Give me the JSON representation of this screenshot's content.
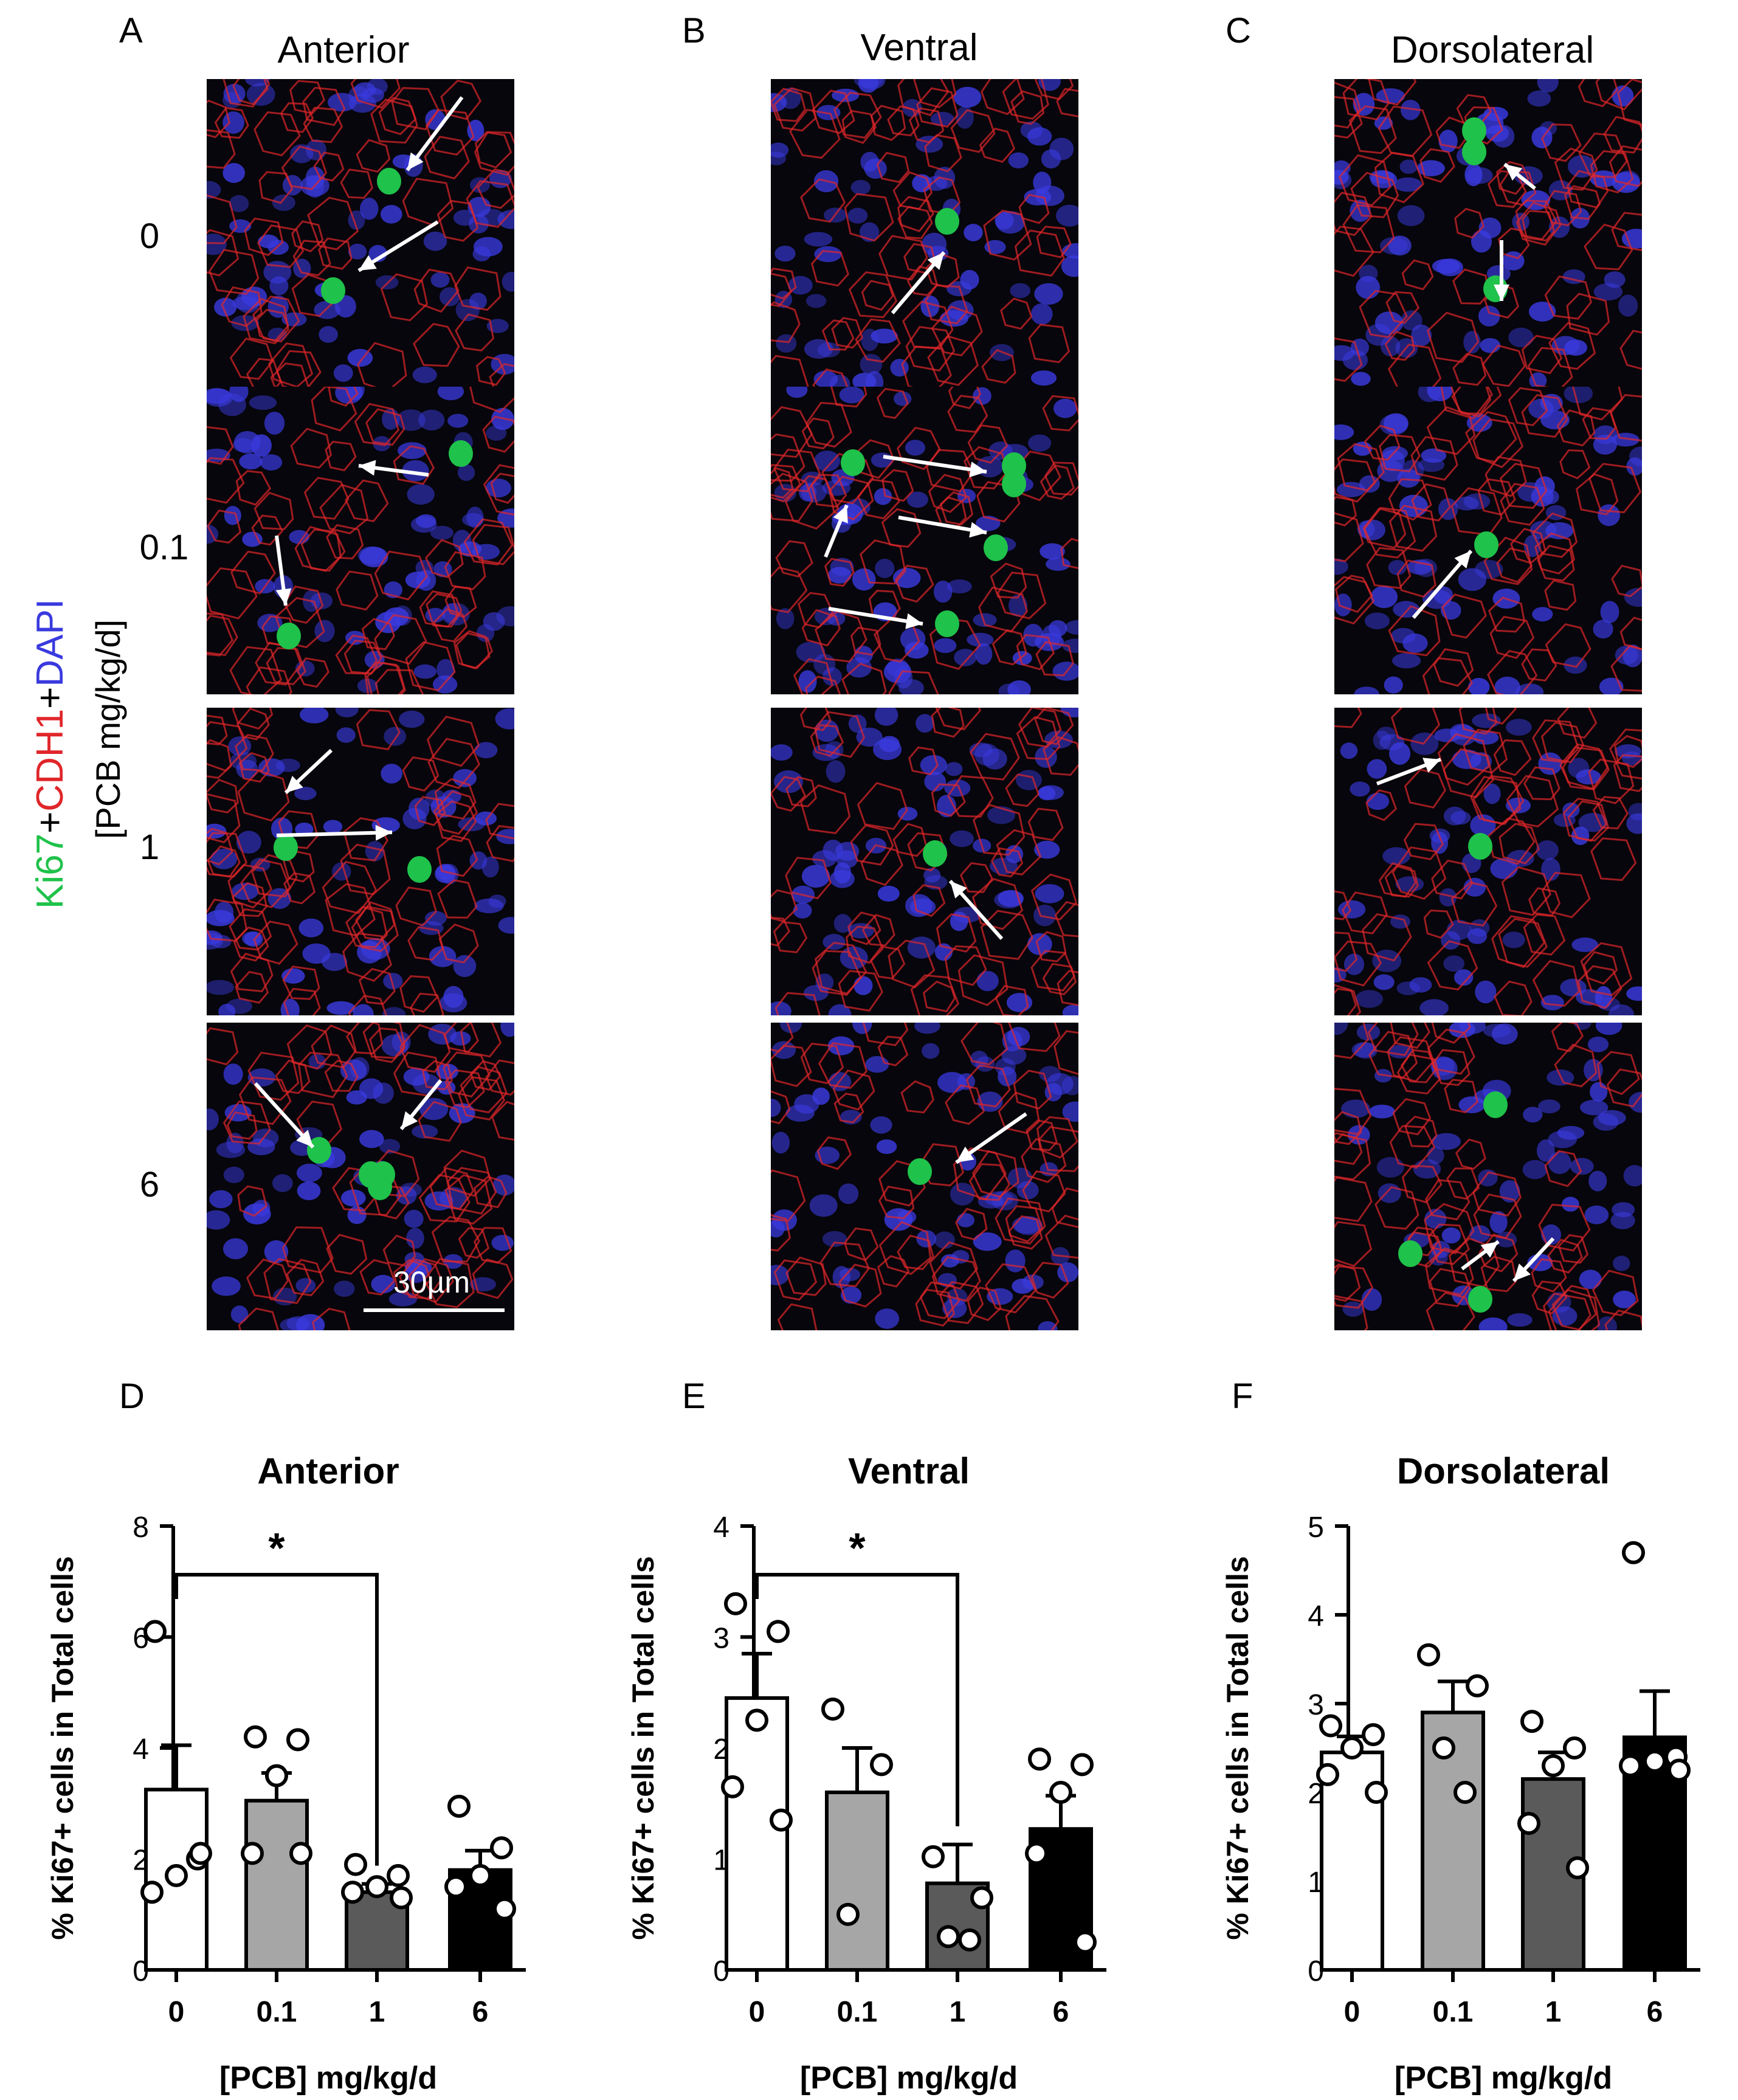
{
  "figure": {
    "panels": {
      "A": "A",
      "B": "B",
      "C": "C",
      "D": "D",
      "E": "E",
      "F": "F"
    },
    "columns": [
      {
        "letter": "A",
        "title": "Anterior"
      },
      {
        "letter": "B",
        "title": "Ventral"
      },
      {
        "letter": "C",
        "title": "Dorsolateral"
      }
    ],
    "doses": [
      "0",
      "0.1",
      "1",
      "6"
    ],
    "stain_label": {
      "ki67": "Ki67",
      "plus1": "+",
      "cdh1": "CDH1",
      "plus2": "+",
      "dapi": "DAPI"
    },
    "dose_axis_label": "[PCB mg/kg/d]",
    "scale_bar": "30µm",
    "colors": {
      "ki67": "#1fc24a",
      "cdh1": "#e0262a",
      "dapi": "#3a3adf",
      "bar_0": "#ffffff",
      "bar_0.1": "#a6a6a6",
      "bar_1": "#5a5a5a",
      "bar_6": "#000000"
    }
  },
  "chart_data": [
    {
      "panel": "D",
      "type": "bar",
      "title": "Anterior",
      "xlabel": "[PCB] mg/kg/d",
      "ylabel": "% Ki67+ cells in Total cells",
      "categories": [
        "0",
        "0.1",
        "1",
        "6"
      ],
      "ylim": [
        0,
        8
      ],
      "yticks": [
        "0",
        "2",
        "4",
        "6",
        "8"
      ],
      "values": [
        3.25,
        3.05,
        1.4,
        1.8
      ],
      "errors": [
        0.8,
        0.5,
        0.15,
        0.35
      ],
      "points": [
        [
          6.1,
          2.0,
          1.7,
          1.4,
          2.1
        ],
        [
          4.2,
          4.15,
          3.5,
          2.1,
          2.1
        ],
        [
          1.9,
          1.7,
          1.5,
          1.4,
          1.3
        ],
        [
          2.95,
          2.2,
          1.7,
          1.5,
          1.1
        ]
      ],
      "significance": {
        "from": "0",
        "to": "1",
        "label": "*"
      }
    },
    {
      "panel": "E",
      "type": "bar",
      "title": "Ventral",
      "xlabel": "[PCB] mg/kg/d",
      "ylabel": "% Ki67+ cells in Total cells",
      "categories": [
        "0",
        "0.1",
        "1",
        "6"
      ],
      "ylim": [
        0,
        4
      ],
      "yticks": [
        "0",
        "1",
        "2",
        "3",
        "4"
      ],
      "values": [
        2.45,
        1.6,
        0.78,
        1.27
      ],
      "errors": [
        0.4,
        0.4,
        0.35,
        0.3
      ],
      "points": [
        [
          3.3,
          3.05,
          2.25,
          1.65,
          1.35
        ],
        [
          2.35,
          1.85,
          0.5
        ],
        [
          1.02,
          0.65,
          0.3,
          0.27
        ],
        [
          1.9,
          1.85,
          1.6,
          1.05,
          0.25
        ]
      ],
      "significance": {
        "from": "0",
        "to": "1",
        "label": "*"
      }
    },
    {
      "panel": "F",
      "type": "bar",
      "title": "Dorsolateral",
      "xlabel": "[PCB] mg/kg/d",
      "ylabel": "% Ki67+ cells in Total cells",
      "categories": [
        "0",
        "0.1",
        "1",
        "6"
      ],
      "ylim": [
        0,
        5
      ],
      "yticks": [
        "0",
        "1",
        "2",
        "3",
        "4",
        "5"
      ],
      "values": [
        2.45,
        2.9,
        2.15,
        2.62
      ],
      "errors": [
        0.18,
        0.35,
        0.3,
        0.52
      ],
      "points": [
        [
          2.75,
          2.65,
          2.5,
          2.2,
          2.0
        ],
        [
          3.55,
          3.2,
          2.5,
          2.0
        ],
        [
          2.8,
          2.5,
          2.3,
          1.65,
          1.15
        ],
        [
          4.7,
          2.4,
          2.35,
          2.3,
          2.25
        ]
      ]
    }
  ]
}
